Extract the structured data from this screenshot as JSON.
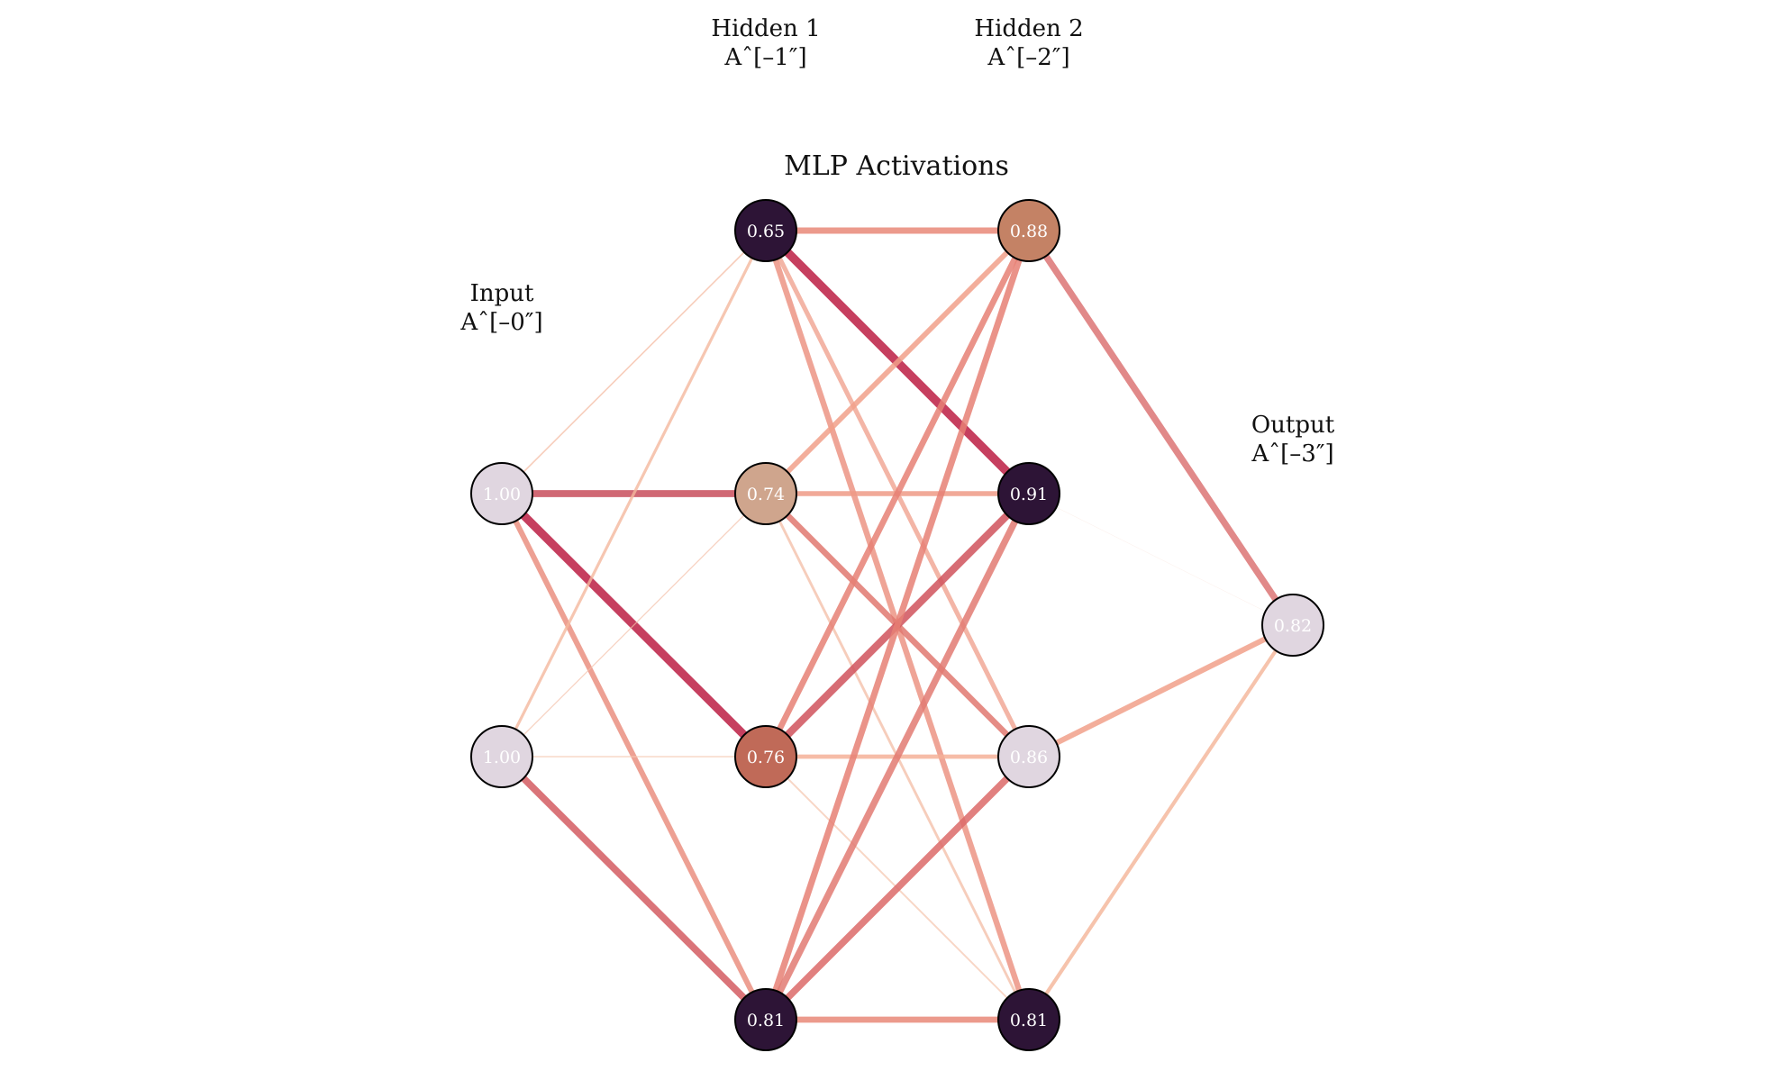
{
  "title": "MLP Activations",
  "layers": [
    {
      "id": "input",
      "name": "Input",
      "label": "Aˆ[–0″]",
      "nodes": [
        {
          "value": "1.00",
          "fill": "#e0d6e0",
          "text": "#ffffff"
        },
        {
          "value": "1.00",
          "fill": "#e0d6e0",
          "text": "#ffffff"
        }
      ]
    },
    {
      "id": "hidden1",
      "name": "Hidden 1",
      "label": "Aˆ[–1″]",
      "nodes": [
        {
          "value": "0.65",
          "fill": "#2d1436",
          "text": "#ffffff"
        },
        {
          "value": "0.74",
          "fill": "#cfa58d",
          "text": "#ffffff"
        },
        {
          "value": "0.76",
          "fill": "#c06a58",
          "text": "#ffffff"
        },
        {
          "value": "0.81",
          "fill": "#2d1436",
          "text": "#ffffff"
        }
      ]
    },
    {
      "id": "hidden2",
      "name": "Hidden 2",
      "label": "Aˆ[–2″]",
      "nodes": [
        {
          "value": "0.88",
          "fill": "#c48265",
          "text": "#ffffff"
        },
        {
          "value": "0.91",
          "fill": "#2d1436",
          "text": "#ffffff"
        },
        {
          "value": "0.86",
          "fill": "#e0d6e0",
          "text": "#ffffff"
        },
        {
          "value": "0.81",
          "fill": "#2d1436",
          "text": "#ffffff"
        }
      ]
    },
    {
      "id": "output",
      "name": "Output",
      "label": "Aˆ[–3″]",
      "nodes": [
        {
          "value": "0.82",
          "fill": "#e0d6e0",
          "text": "#ffffff"
        }
      ]
    }
  ],
  "connections": [
    {
      "from": [
        0,
        0
      ],
      "to": [
        1,
        0
      ],
      "color": "#f4b89e",
      "alpha": 0.7,
      "weight": 0.5
    },
    {
      "from": [
        0,
        0
      ],
      "to": [
        1,
        1
      ],
      "color": "#c84e5c",
      "alpha": 0.85,
      "weight": 2.4
    },
    {
      "from": [
        0,
        0
      ],
      "to": [
        1,
        2
      ],
      "color": "#c02a4e",
      "alpha": 0.9,
      "weight": 2.9
    },
    {
      "from": [
        0,
        0
      ],
      "to": [
        1,
        3
      ],
      "color": "#ea8f80",
      "alpha": 0.85,
      "weight": 1.9
    },
    {
      "from": [
        0,
        1
      ],
      "to": [
        1,
        0
      ],
      "color": "#f4b89e",
      "alpha": 0.8,
      "weight": 1.0
    },
    {
      "from": [
        0,
        1
      ],
      "to": [
        1,
        1
      ],
      "color": "#f4c0aa",
      "alpha": 0.7,
      "weight": 0.4
    },
    {
      "from": [
        0,
        1
      ],
      "to": [
        1,
        2
      ],
      "color": "#f6c8b2",
      "alpha": 0.7,
      "weight": 0.5
    },
    {
      "from": [
        0,
        1
      ],
      "to": [
        1,
        3
      ],
      "color": "#d45c62",
      "alpha": 0.85,
      "weight": 2.4
    },
    {
      "from": [
        1,
        0
      ],
      "to": [
        2,
        0
      ],
      "color": "#ea8f80",
      "alpha": 0.9,
      "weight": 2.2
    },
    {
      "from": [
        1,
        0
      ],
      "to": [
        2,
        1
      ],
      "color": "#c02a4e",
      "alpha": 0.9,
      "weight": 3.0
    },
    {
      "from": [
        1,
        0
      ],
      "to": [
        2,
        2
      ],
      "color": "#f1a896",
      "alpha": 0.85,
      "weight": 1.6
    },
    {
      "from": [
        1,
        0
      ],
      "to": [
        2,
        3
      ],
      "color": "#ec9484",
      "alpha": 0.85,
      "weight": 2.0
    },
    {
      "from": [
        1,
        1
      ],
      "to": [
        2,
        0
      ],
      "color": "#f1a08a",
      "alpha": 0.85,
      "weight": 1.8
    },
    {
      "from": [
        1,
        1
      ],
      "to": [
        2,
        1
      ],
      "color": "#ee9a86",
      "alpha": 0.85,
      "weight": 1.7
    },
    {
      "from": [
        1,
        1
      ],
      "to": [
        2,
        2
      ],
      "color": "#e07870",
      "alpha": 0.85,
      "weight": 2.1
    },
    {
      "from": [
        1,
        1
      ],
      "to": [
        2,
        3
      ],
      "color": "#f4c0aa",
      "alpha": 0.8,
      "weight": 0.9
    },
    {
      "from": [
        1,
        2
      ],
      "to": [
        2,
        0
      ],
      "color": "#e68074",
      "alpha": 0.85,
      "weight": 2.1
    },
    {
      "from": [
        1,
        2
      ],
      "to": [
        2,
        1
      ],
      "color": "#d0525c",
      "alpha": 0.85,
      "weight": 2.6
    },
    {
      "from": [
        1,
        2
      ],
      "to": [
        2,
        2
      ],
      "color": "#f4b098",
      "alpha": 0.85,
      "weight": 1.5
    },
    {
      "from": [
        1,
        2
      ],
      "to": [
        2,
        3
      ],
      "color": "#f6c8b2",
      "alpha": 0.75,
      "weight": 0.6
    },
    {
      "from": [
        1,
        3
      ],
      "to": [
        2,
        0
      ],
      "color": "#e68074",
      "alpha": 0.85,
      "weight": 2.2
    },
    {
      "from": [
        1,
        3
      ],
      "to": [
        2,
        1
      ],
      "color": "#e27a72",
      "alpha": 0.85,
      "weight": 2.3
    },
    {
      "from": [
        1,
        3
      ],
      "to": [
        2,
        2
      ],
      "color": "#dc6a68",
      "alpha": 0.85,
      "weight": 2.4
    },
    {
      "from": [
        1,
        3
      ],
      "to": [
        2,
        3
      ],
      "color": "#ea8f80",
      "alpha": 0.9,
      "weight": 2.1
    },
    {
      "from": [
        2,
        0
      ],
      "to": [
        3,
        0
      ],
      "color": "#dc7474",
      "alpha": 0.85,
      "weight": 2.3
    },
    {
      "from": [
        2,
        1
      ],
      "to": [
        3,
        0
      ],
      "color": "#f6dcd0",
      "alpha": 0.5,
      "weight": 0.15
    },
    {
      "from": [
        2,
        2
      ],
      "to": [
        3,
        0
      ],
      "color": "#f1a08a",
      "alpha": 0.85,
      "weight": 1.9
    },
    {
      "from": [
        2,
        3
      ],
      "to": [
        3,
        0
      ],
      "color": "#f4b89e",
      "alpha": 0.85,
      "weight": 1.3
    }
  ]
}
